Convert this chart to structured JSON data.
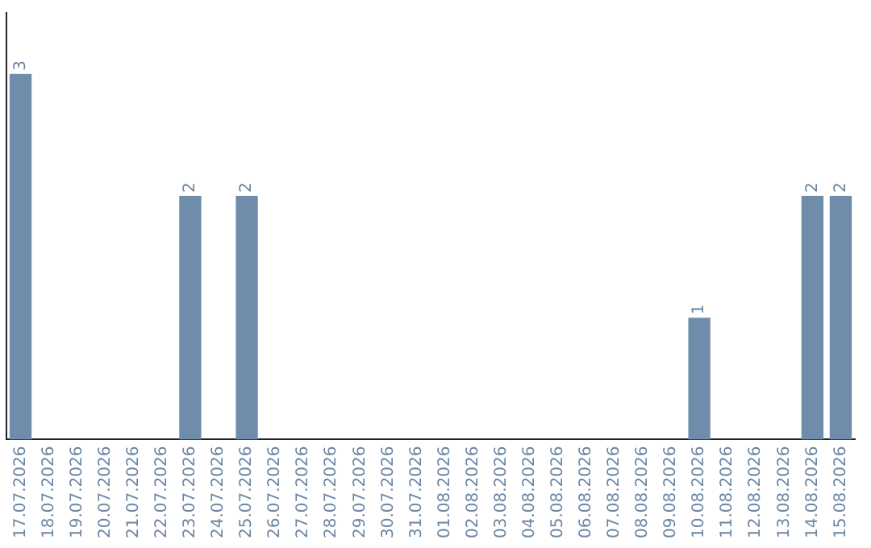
{
  "chart_data": {
    "type": "bar",
    "categories": [
      "17.07.2026",
      "18.07.2026",
      "19.07.2026",
      "20.07.2026",
      "21.07.2026",
      "22.07.2026",
      "23.07.2026",
      "24.07.2026",
      "25.07.2026",
      "26.07.2026",
      "27.07.2026",
      "28.07.2026",
      "29.07.2026",
      "30.07.2026",
      "31.07.2026",
      "01.08.2026",
      "02.08.2026",
      "03.08.2026",
      "04.08.2026",
      "05.08.2026",
      "06.08.2026",
      "07.08.2026",
      "08.08.2026",
      "09.08.2026",
      "10.08.2026",
      "11.08.2026",
      "12.08.2026",
      "13.08.2026",
      "14.08.2026",
      "15.08.2026"
    ],
    "values": [
      3,
      0,
      0,
      0,
      0,
      0,
      2,
      0,
      2,
      0,
      0,
      0,
      0,
      0,
      0,
      0,
      0,
      0,
      0,
      0,
      0,
      0,
      0,
      0,
      1,
      0,
      0,
      0,
      2,
      2
    ],
    "value_labels": [
      "3",
      null,
      null,
      null,
      null,
      null,
      "2",
      null,
      "2",
      null,
      null,
      null,
      null,
      null,
      null,
      null,
      null,
      null,
      null,
      null,
      null,
      null,
      null,
      null,
      "1",
      null,
      null,
      null,
      "2",
      "2"
    ],
    "color": "#6f8dab",
    "tick_labels": "x",
    "grid": false,
    "legend": false
  }
}
